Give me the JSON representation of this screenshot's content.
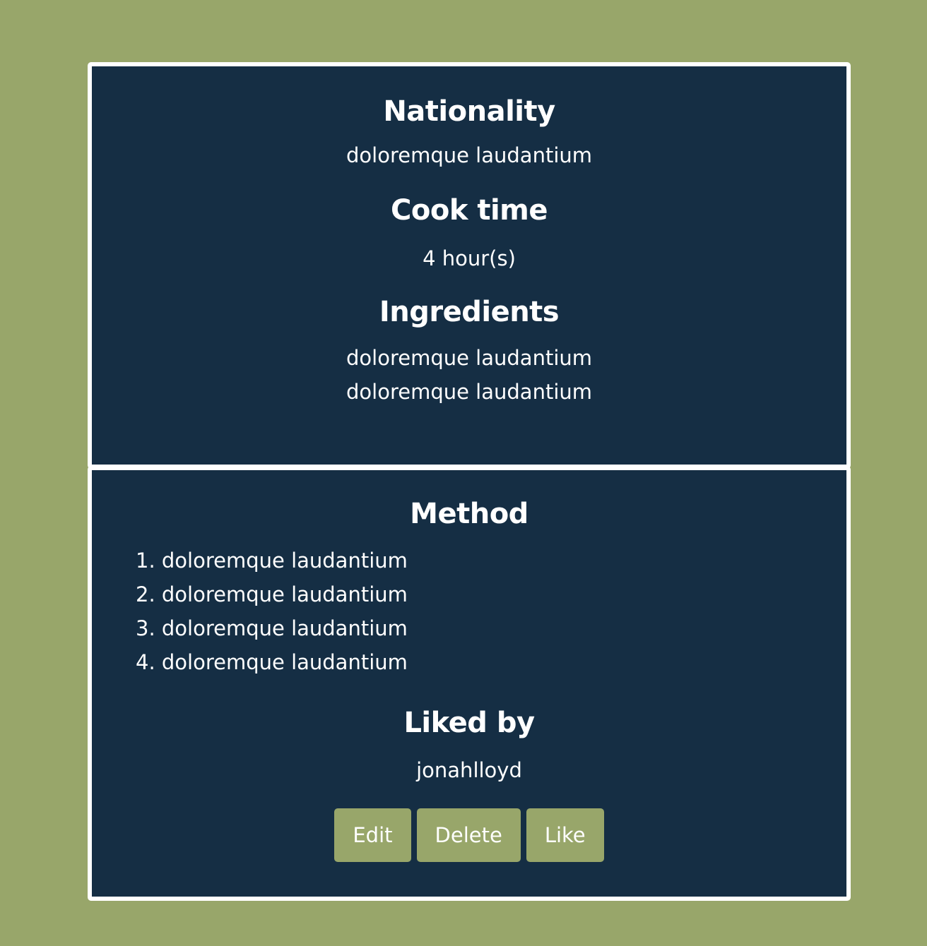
{
  "recipe": {
    "nationality_heading": "Nationality",
    "nationality_value": "doloremque laudantium",
    "cooktime_heading": "Cook time",
    "cooktime_value": "4 hour(s)",
    "ingredients_heading": "Ingredients",
    "ingredients": [
      "doloremque laudantium",
      "doloremque laudantium"
    ],
    "method_heading": "Method",
    "method_steps": [
      "1. doloremque laudantium",
      "2. doloremque laudantium",
      "3. doloremque laudantium",
      "4. doloremque laudantium"
    ],
    "liked_heading": "Liked by",
    "liked_by": "jonahlloyd"
  },
  "actions": {
    "edit_label": "Edit",
    "delete_label": "Delete",
    "like_label": "Like"
  },
  "colors": {
    "background": "#98a66a",
    "card": "#152e44",
    "button": "#98a66a",
    "text": "#ffffff"
  }
}
